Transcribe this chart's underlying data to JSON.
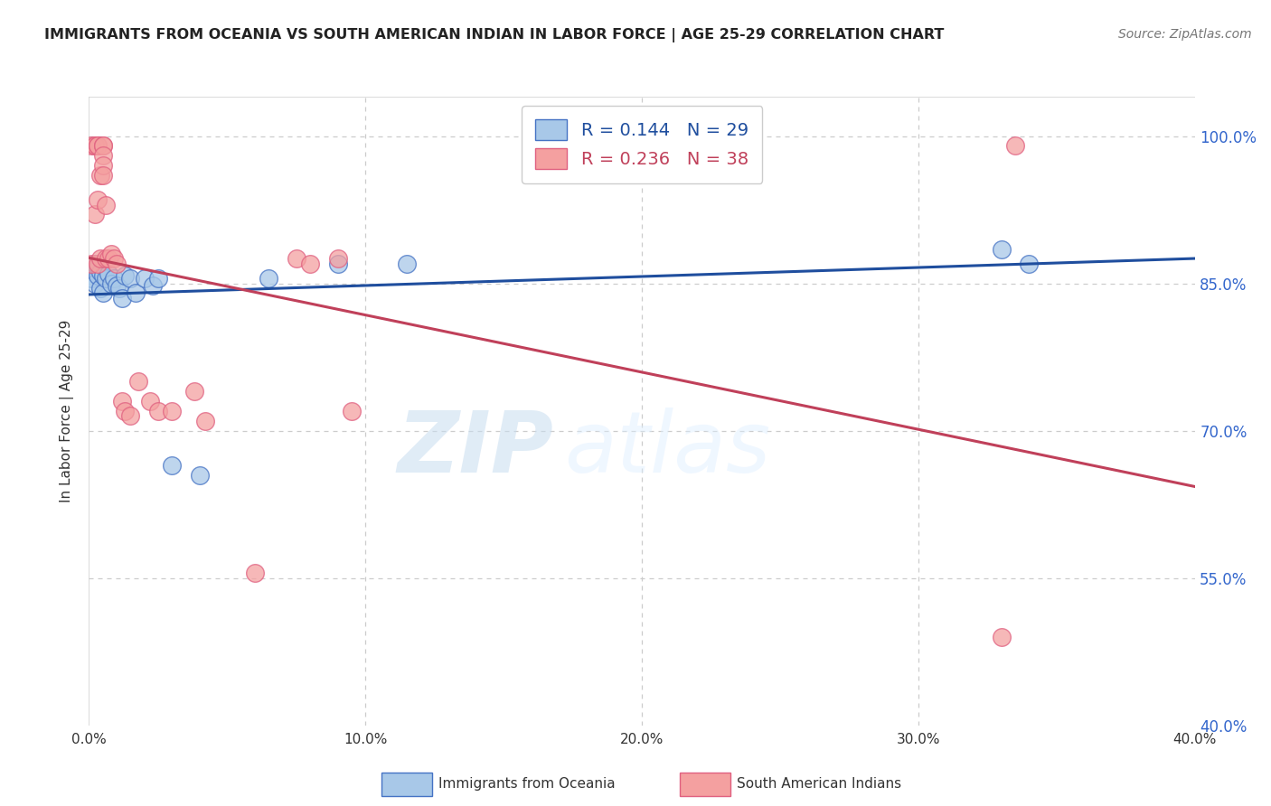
{
  "title": "IMMIGRANTS FROM OCEANIA VS SOUTH AMERICAN INDIAN IN LABOR FORCE | AGE 25-29 CORRELATION CHART",
  "source": "Source: ZipAtlas.com",
  "ylabel": "In Labor Force | Age 25-29",
  "blue_label": "Immigrants from Oceania",
  "pink_label": "South American Indians",
  "blue_R": 0.144,
  "blue_N": 29,
  "pink_R": 0.236,
  "pink_N": 38,
  "blue_color": "#a8c8e8",
  "pink_color": "#f4a0a0",
  "blue_edge_color": "#4472c4",
  "pink_edge_color": "#e06080",
  "blue_line_color": "#1f4e9e",
  "pink_line_color": "#c0405a",
  "watermark_zip": "ZIP",
  "watermark_atlas": "atlas",
  "xlim": [
    0.0,
    0.4
  ],
  "ylim": [
    0.4,
    1.04
  ],
  "xtick_vals": [
    0.0,
    0.1,
    0.2,
    0.3,
    0.4
  ],
  "xtick_labels": [
    "0.0%",
    "10.0%",
    "20.0%",
    "30.0%",
    "40.0%"
  ],
  "ytick_vals": [
    0.4,
    0.55,
    0.7,
    0.85,
    1.0
  ],
  "ytick_labels": [
    "40.0%",
    "55.0%",
    "70.0%",
    "85.0%",
    "100.0%"
  ],
  "blue_x": [
    0.001,
    0.002,
    0.002,
    0.003,
    0.003,
    0.004,
    0.004,
    0.005,
    0.005,
    0.006,
    0.007,
    0.008,
    0.009,
    0.01,
    0.011,
    0.012,
    0.013,
    0.015,
    0.017,
    0.02,
    0.023,
    0.025,
    0.03,
    0.04,
    0.065,
    0.09,
    0.115,
    0.33,
    0.34
  ],
  "blue_y": [
    0.855,
    0.87,
    0.85,
    0.865,
    0.858,
    0.862,
    0.845,
    0.858,
    0.84,
    0.855,
    0.86,
    0.85,
    0.855,
    0.848,
    0.845,
    0.835,
    0.858,
    0.855,
    0.84,
    0.855,
    0.848,
    0.855,
    0.665,
    0.655,
    0.855,
    0.87,
    0.87,
    0.885,
    0.87
  ],
  "pink_x": [
    0.001,
    0.001,
    0.002,
    0.002,
    0.002,
    0.003,
    0.003,
    0.003,
    0.003,
    0.004,
    0.004,
    0.005,
    0.005,
    0.005,
    0.005,
    0.005,
    0.006,
    0.006,
    0.007,
    0.008,
    0.009,
    0.01,
    0.012,
    0.013,
    0.015,
    0.018,
    0.022,
    0.025,
    0.03,
    0.038,
    0.042,
    0.06,
    0.075,
    0.08,
    0.09,
    0.095,
    0.33,
    0.335
  ],
  "pink_y": [
    0.87,
    0.99,
    0.99,
    0.99,
    0.92,
    0.87,
    0.935,
    0.99,
    0.99,
    0.96,
    0.875,
    0.99,
    0.99,
    0.98,
    0.97,
    0.96,
    0.875,
    0.93,
    0.875,
    0.88,
    0.875,
    0.87,
    0.73,
    0.72,
    0.715,
    0.75,
    0.73,
    0.72,
    0.72,
    0.74,
    0.71,
    0.555,
    0.875,
    0.87,
    0.875,
    0.72,
    0.49,
    0.99
  ]
}
